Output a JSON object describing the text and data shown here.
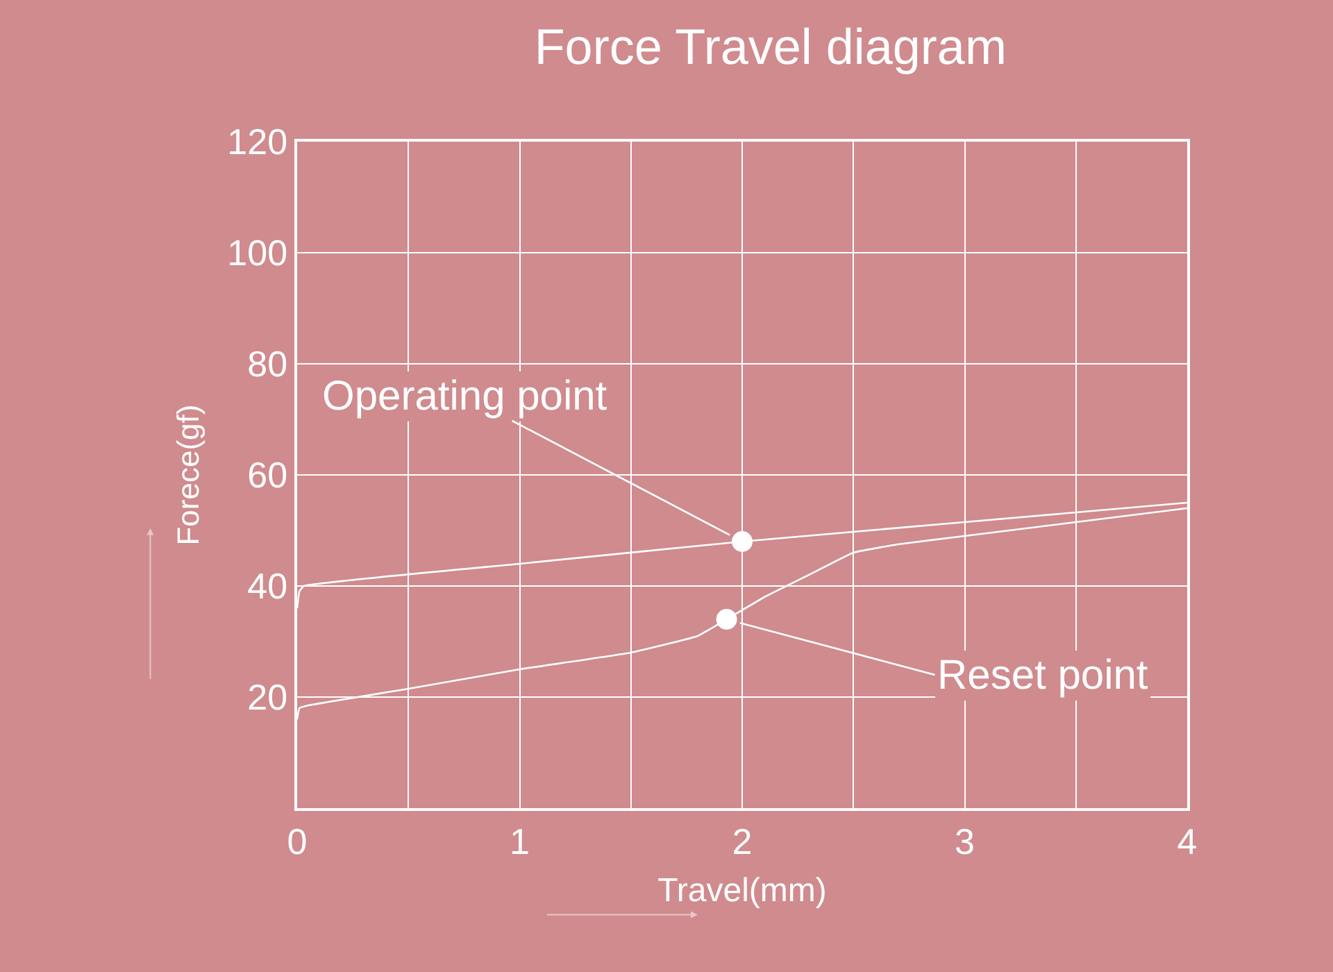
{
  "chart_data": {
    "type": "line",
    "title": "Force Travel diagram",
    "xlabel": "Travel(mm)",
    "ylabel": "Forece(gf)",
    "xlim": [
      0,
      4
    ],
    "xticks": [
      0,
      {
        "value": 0.5,
        "label": null
      },
      1,
      {
        "value": 1.5,
        "label": null
      },
      2,
      {
        "value": 2.5,
        "label": null
      },
      3,
      {
        "value": 3.5,
        "label": null
      },
      4
    ],
    "ylim": [
      0,
      120
    ],
    "yticks": [
      {
        "value": 0,
        "label": null
      },
      20,
      40,
      60,
      80,
      100,
      120
    ],
    "grid": true,
    "marker": "none",
    "line_style": "solid",
    "series": [
      {
        "color": "#ffffff",
        "x": [
          0,
          0.01,
          0.03,
          1,
          2,
          3,
          4
        ],
        "values": [
          36,
          39,
          40,
          44,
          48,
          51.5,
          55
        ]
      },
      {
        "color": "#ffffff",
        "x": [
          0,
          0.01,
          0.05,
          0.5,
          1,
          1.5,
          1.8,
          1.93,
          2.1,
          2.3,
          2.5,
          2.7,
          3,
          3.5,
          4
        ],
        "values": [
          16,
          18,
          18.5,
          21.5,
          25,
          28,
          31,
          34,
          38,
          42,
          46,
          47.5,
          49,
          51.5,
          54
        ]
      },
      {
        "type": "scatter",
        "marker": "circle",
        "color": "#ffffff",
        "x": [
          2,
          1.93
        ],
        "values": [
          48,
          34
        ]
      }
    ],
    "annotations": [
      {
        "text": "Operating point",
        "x": 2,
        "y": 48
      },
      {
        "text": "Reset point",
        "x": 1.93,
        "y": 34
      }
    ]
  }
}
